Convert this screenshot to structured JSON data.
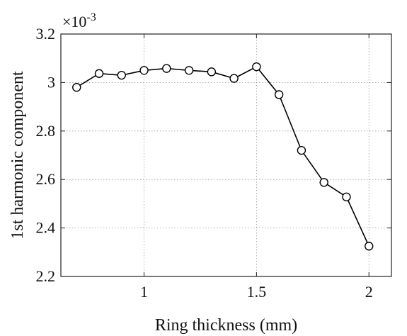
{
  "chart_data": {
    "type": "line",
    "title": "",
    "xlabel": "Ring thickness (mm)",
    "ylabel": "1st harmonic component",
    "y_exponent_base": "×10",
    "y_exponent_power": "-3",
    "xlim": [
      0.63,
      2.1
    ],
    "ylim": [
      2.2,
      3.2
    ],
    "x_ticks": [
      1,
      1.5,
      2
    ],
    "x_tick_labels": [
      "1",
      "1.5",
      "2"
    ],
    "y_ticks": [
      2.2,
      2.4,
      2.6,
      2.8,
      3.0,
      3.2
    ],
    "y_tick_labels": [
      "2.2",
      "2.4",
      "2.6",
      "2.8",
      "3",
      "3.2"
    ],
    "grid": true,
    "marker": "open-circle",
    "series": [
      {
        "x": [
          0.7,
          0.8,
          0.9,
          1.0,
          1.1,
          1.2,
          1.3,
          1.4,
          1.5,
          1.6,
          1.7,
          1.8,
          1.9,
          2.0
        ],
        "y": [
          2.98,
          3.037,
          3.03,
          3.05,
          3.058,
          3.05,
          3.044,
          3.017,
          3.065,
          2.95,
          2.72,
          2.588,
          2.528,
          2.325
        ],
        "color": "#000000"
      }
    ]
  }
}
